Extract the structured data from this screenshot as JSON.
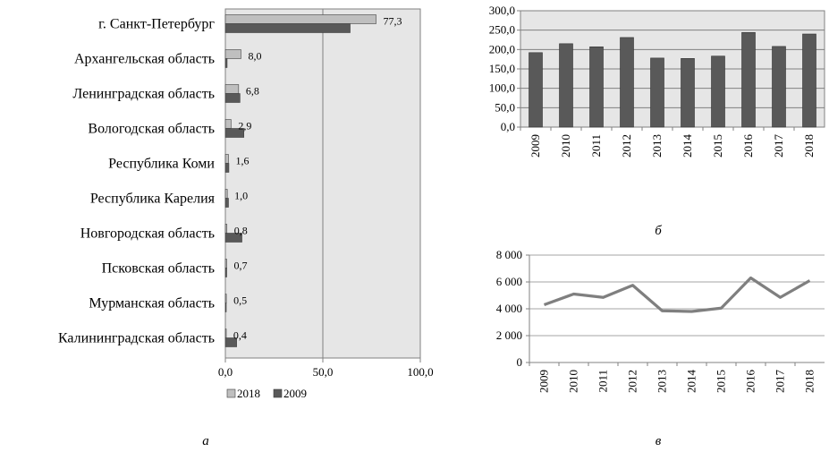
{
  "charts": [
    {
      "type": "bar",
      "orientation": "horizontal",
      "panel_label": "а",
      "categories": [
        "г. Санкт-Петербург",
        "Архангельская область",
        "Ленинградская область",
        "Вологодская область",
        "Республика Коми",
        "Республика Карелия",
        "Новгородская область",
        "Псковская область",
        "Мурманская область",
        "Калининградская область"
      ],
      "series": [
        {
          "name": "2018",
          "color": "#bfbfbf",
          "values": [
            77.3,
            8.0,
            6.8,
            2.9,
            1.6,
            1.0,
            0.8,
            0.7,
            0.5,
            0.4
          ]
        },
        {
          "name": "2009",
          "color": "#595959",
          "values": [
            64.0,
            0.9,
            7.5,
            9.5,
            1.8,
            1.6,
            8.5,
            0.7,
            0.3,
            5.8
          ]
        }
      ],
      "data_labels": [
        "77,3",
        "8,0",
        "6,8",
        "2,9",
        "1,6",
        "1,0",
        "0,8",
        "0,7",
        "0,5",
        "0,4"
      ],
      "xlim": [
        0,
        100
      ],
      "x_ticks": [
        "0,0",
        "50,0",
        "100,0"
      ],
      "grid": "vertical",
      "legend": "bottom"
    },
    {
      "type": "bar",
      "panel_label": "б",
      "categories": [
        "2009",
        "2010",
        "2011",
        "2012",
        "2013",
        "2014",
        "2015",
        "2016",
        "2017",
        "2018"
      ],
      "values": [
        192,
        215,
        207,
        231,
        178,
        177,
        183,
        244,
        208,
        240
      ],
      "color": "#595959",
      "ylim": [
        0,
        300
      ],
      "y_ticks": [
        "0,0",
        "50,0",
        "100,0",
        "150,0",
        "200,0",
        "250,0",
        "300,0"
      ],
      "grid": "horizontal"
    },
    {
      "type": "line",
      "panel_label": "в",
      "categories": [
        "2009",
        "2010",
        "2011",
        "2012",
        "2013",
        "2014",
        "2015",
        "2016",
        "2017",
        "2018"
      ],
      "values": [
        4300,
        5100,
        4850,
        5750,
        3850,
        3800,
        4050,
        6300,
        4850,
        6100
      ],
      "color": "#7f7f7f",
      "ylim": [
        0,
        8000
      ],
      "y_ticks": [
        "0",
        "2 000",
        "4 000",
        "6 000",
        "8 000"
      ],
      "grid": "horizontal"
    }
  ]
}
